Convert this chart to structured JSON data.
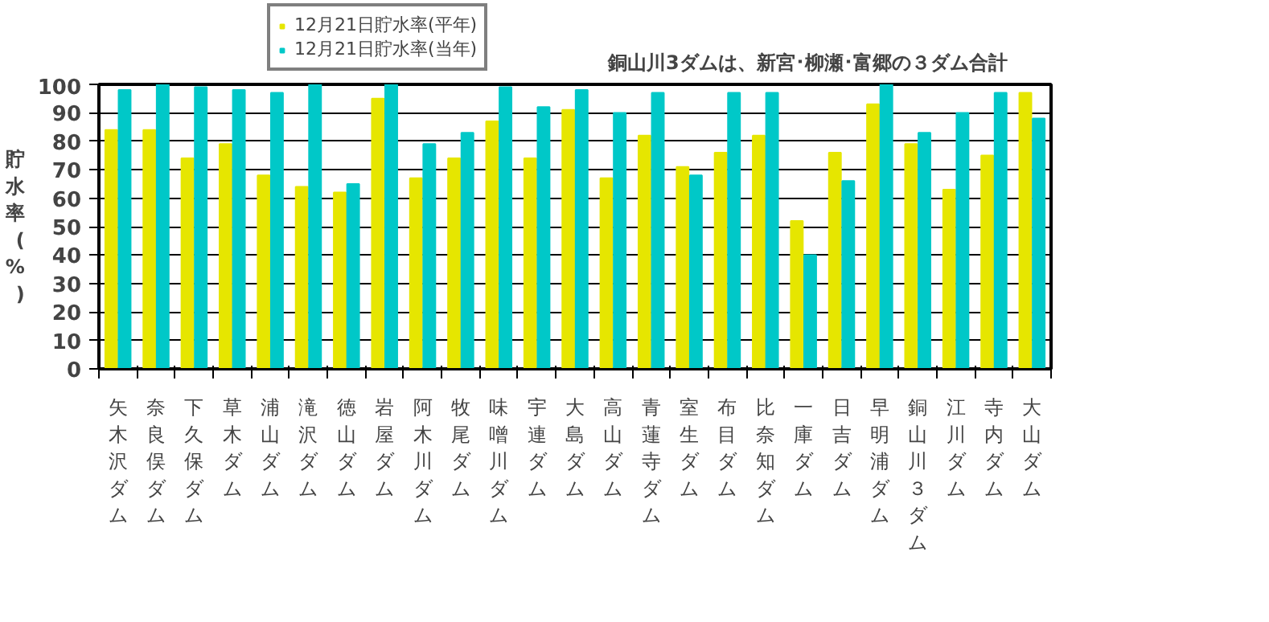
{
  "chart_data": {
    "type": "bar",
    "categories": [
      "矢木沢ダム",
      "奈良俣ダム",
      "下久保ダム",
      "草木ダム",
      "浦山ダム",
      "滝沢ダム",
      "徳山ダム",
      "岩屋ダム",
      "阿木川ダム",
      "牧尾ダム",
      "味噌川ダム",
      "宇連ダム",
      "大島ダム",
      "高山ダム",
      "青蓮寺ダム",
      "室生ダム",
      "布目ダム",
      "比奈知ダム",
      "一庫ダム",
      "日吉ダム",
      "早明浦ダム",
      "銅山川３ダム",
      "江川ダム",
      "寺内ダム",
      "大山ダム"
    ],
    "series": [
      {
        "name": "12月21日貯水率(平年)",
        "color": "#e6e600",
        "values": [
          84,
          84,
          74,
          79,
          68,
          64,
          62,
          95,
          67,
          74,
          87,
          74,
          91,
          67,
          82,
          71,
          76,
          82,
          52,
          76,
          93,
          79,
          63,
          75,
          97
        ]
      },
      {
        "name": "12月21日貯水率(当年)",
        "color": "#00c8c8",
        "values": [
          98,
          100,
          99,
          98,
          97,
          100,
          65,
          100,
          79,
          83,
          99,
          92,
          98,
          90,
          97,
          68,
          97,
          97,
          40,
          66,
          100,
          83,
          90,
          97,
          88
        ]
      }
    ],
    "ylabel": "貯水率(%)",
    "ylim": [
      0,
      100
    ],
    "yticks": [
      0,
      10,
      20,
      30,
      40,
      50,
      60,
      70,
      80,
      90,
      100
    ],
    "grid": "y",
    "legend": "top left",
    "annotations": [
      "銅山川3ダムは、新宮･柳瀬･富郷の３ダム合計"
    ]
  }
}
